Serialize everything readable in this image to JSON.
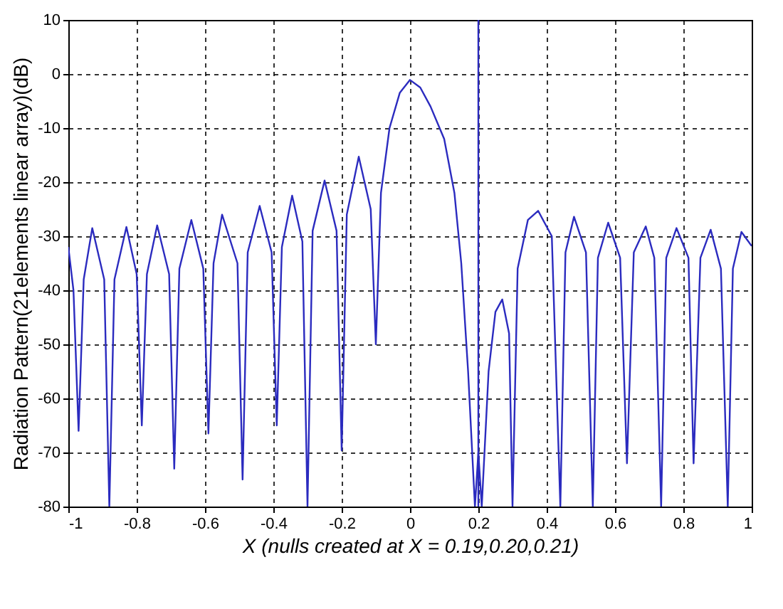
{
  "chart_data": {
    "type": "line",
    "xlabel": "X (nulls created at X = 0.19,0.20,0.21)",
    "ylabel": "Radiation Pattern(21elements linear array)(dB)",
    "x": [
      -1,
      -0.985,
      -0.97,
      -0.955,
      -0.93,
      -0.895,
      -0.88,
      -0.865,
      -0.83,
      -0.8,
      -0.785,
      -0.77,
      -0.74,
      -0.705,
      -0.69,
      -0.675,
      -0.64,
      -0.605,
      -0.59,
      -0.575,
      -0.55,
      -0.505,
      -0.49,
      -0.475,
      -0.44,
      -0.405,
      -0.39,
      -0.375,
      -0.345,
      -0.315,
      -0.3,
      -0.285,
      -0.25,
      -0.215,
      -0.2,
      -0.185,
      -0.15,
      -0.115,
      -0.1,
      -0.085,
      -0.06,
      -0.03,
      0,
      0.03,
      0.06,
      0.1,
      0.13,
      0.15,
      0.17,
      0.19,
      0.2,
      0.21,
      0.23,
      0.25,
      0.27,
      0.29,
      0.3,
      0.315,
      0.345,
      0.375,
      0.415,
      0.44,
      0.455,
      0.48,
      0.515,
      0.535,
      0.55,
      0.58,
      0.615,
      0.635,
      0.655,
      0.69,
      0.715,
      0.735,
      0.75,
      0.78,
      0.815,
      0.83,
      0.85,
      0.88,
      0.91,
      0.93,
      0.945,
      0.97,
      1
    ],
    "series": [
      {
        "color": "#2b2bbf",
        "values": [
          -32,
          -40,
          -66,
          -38,
          -28.5,
          -38,
          -80,
          -38,
          -28.3,
          -37,
          -65,
          -37,
          -28,
          -37,
          -73,
          -36,
          -27,
          -36,
          -66.5,
          -35,
          -26,
          -35,
          -75,
          -33,
          -24.4,
          -33,
          -65,
          -32,
          -22.5,
          -31,
          -80,
          -29,
          -19.7,
          -29,
          -69.6,
          -26,
          -15.3,
          -25,
          -50,
          -22,
          -10,
          -3.5,
          -1.1,
          -2.5,
          -6,
          -12,
          -22,
          -35,
          -55,
          -80,
          -70,
          -80,
          -55,
          -44,
          -41.7,
          -48,
          -80,
          -36,
          -27,
          -25.3,
          -30,
          -80,
          -33,
          -26.4,
          -33,
          -80,
          -34,
          -27.5,
          -34,
          -72,
          -33,
          -28.2,
          -34,
          -80,
          -34,
          -28.5,
          -34,
          -72,
          -34,
          -28.8,
          -36,
          -80,
          -36,
          -29.2,
          -31.8
        ]
      }
    ],
    "xlim": [
      -1,
      1
    ],
    "xticks": [
      -1,
      -0.8,
      -0.6,
      -0.4,
      -0.2,
      0,
      0.2,
      0.4,
      0.6,
      0.8,
      1
    ],
    "ylim": [
      -80,
      10
    ],
    "yticks": [
      -80,
      -70,
      -60,
      -50,
      -40,
      -30,
      -20,
      -10,
      0,
      10
    ],
    "ref_lines": [
      {
        "axis": "x",
        "value": 0.2,
        "color": "#2b2bbf"
      }
    ],
    "grid": true,
    "line_style": "solid"
  }
}
